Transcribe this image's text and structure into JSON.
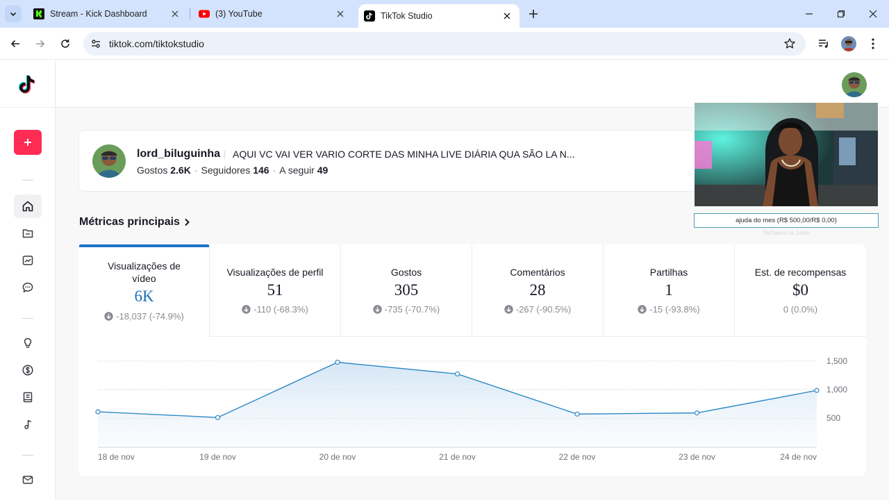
{
  "browser": {
    "tabs": [
      {
        "title": "Stream - Kick Dashboard",
        "favicon": "kick-icon",
        "active": false
      },
      {
        "title": "(3) YouTube",
        "favicon": "youtube-icon",
        "active": false
      },
      {
        "title": "TikTok Studio",
        "favicon": "tiktok-icon",
        "active": true
      }
    ],
    "url": "tiktok.com/tiktokstudio"
  },
  "profile": {
    "username": "lord_biluguinha",
    "bio": "AQUI VC VAI VER VARIO CORTE DAS MINHA LIVE DIÁRIA QUA SÃO LA N...",
    "likes_label": "Gostos",
    "likes": "2.6K",
    "followers_label": "Seguidores",
    "followers": "146",
    "following_label": "A seguir",
    "following": "49"
  },
  "section": {
    "title": "Métricas principais"
  },
  "metrics": [
    {
      "label": "Visualizações de vídeo",
      "value": "6K",
      "change": "-18,037 (-74.9%)",
      "direction": "down",
      "active": true
    },
    {
      "label": "Visualizações de perfil",
      "value": "51",
      "change": "-110 (-68.3%)",
      "direction": "down"
    },
    {
      "label": "Gostos",
      "value": "305",
      "change": "-735 (-70.7%)",
      "direction": "down"
    },
    {
      "label": "Comentários",
      "value": "28",
      "change": "-267 (-90.5%)",
      "direction": "down"
    },
    {
      "label": "Partilhas",
      "value": "1",
      "change": "-15 (-93.8%)",
      "direction": "down"
    },
    {
      "label": "Est. de recompensas",
      "value": "$0",
      "change": "0 (0.0%)",
      "direction": "none"
    }
  ],
  "chart_data": {
    "type": "area",
    "categories": [
      "18 de nov",
      "19 de nov",
      "20 de nov",
      "21 de nov",
      "22 de nov",
      "23 de nov",
      "24 de nov"
    ],
    "series": [
      {
        "values": [
          610,
          510,
          1480,
          1275,
          570,
          590,
          985
        ]
      }
    ],
    "y_ticks": [
      "500",
      "1,000",
      "1,500"
    ],
    "y_tick_values": [
      500,
      1000,
      1500
    ],
    "ylim": [
      0,
      1500
    ],
    "grid": true,
    "line_color": "#2f89c6"
  },
  "overlay": {
    "goal_text": "ajuda do mes (R$ 500,00/R$ 0,00)",
    "goal_subtext": "TikTokers na Julian"
  }
}
